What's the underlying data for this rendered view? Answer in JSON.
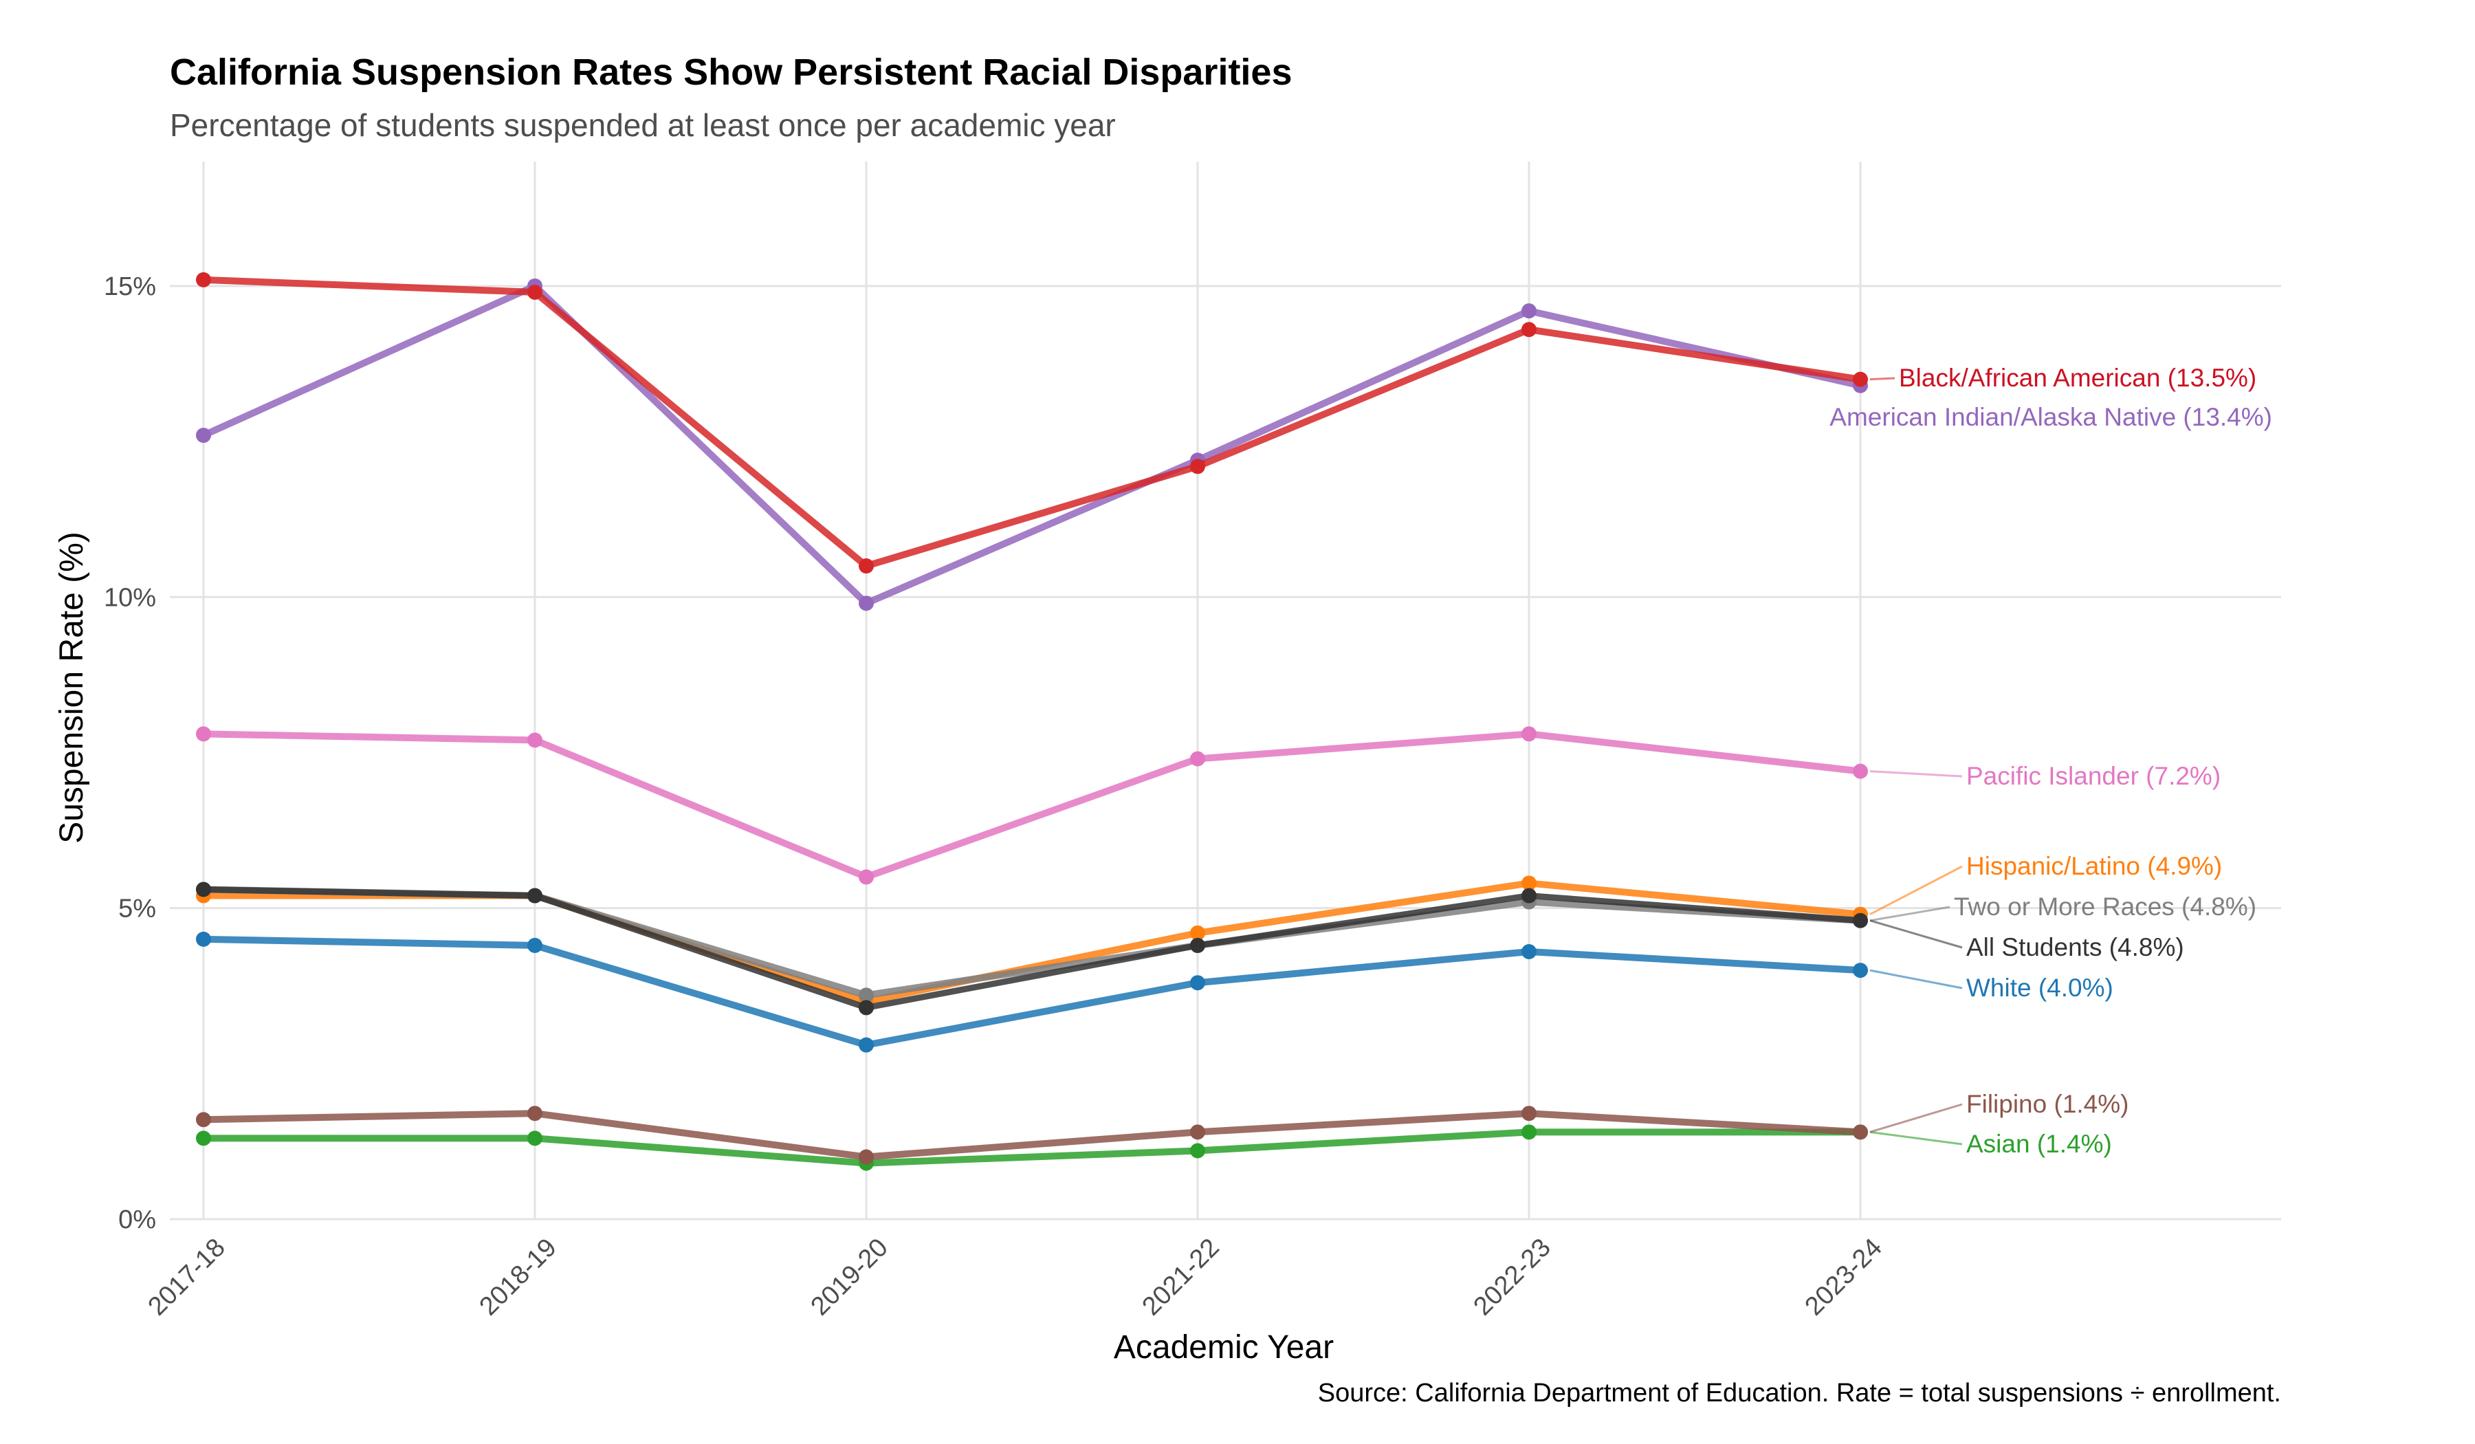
{
  "chart_data": {
    "type": "line",
    "title": "California Suspension Rates Show Persistent Racial Disparities",
    "subtitle": "Percentage of students suspended at least once per academic year",
    "xlabel": "Academic Year",
    "ylabel": "Suspension Rate (%)",
    "caption": "Source: California Department of Education. Rate = total suspensions ÷ enrollment.",
    "categories": [
      "2017-18",
      "2018-19",
      "2019-20",
      "2021-22",
      "2022-23",
      "2023-24"
    ],
    "ylim": [
      0,
      17
    ],
    "yticks": [
      0,
      5,
      10,
      15
    ],
    "ytick_labels": [
      "0%",
      "5%",
      "10%",
      "15%"
    ],
    "grid": true,
    "legend": "direct labels at right end of lines",
    "series": [
      {
        "key": "asian",
        "label": "Asian (1.4%)",
        "color": "#2ca02c",
        "values": [
          1.3,
          1.3,
          0.9,
          1.1,
          1.4,
          1.4
        ]
      },
      {
        "key": "filipino",
        "label": "Filipino (1.4%)",
        "color": "#8c564b",
        "values": [
          1.6,
          1.7,
          1.0,
          1.4,
          1.7,
          1.4
        ]
      },
      {
        "key": "white",
        "label": "White (4.0%)",
        "color": "#1f77b4",
        "values": [
          4.5,
          4.4,
          2.8,
          3.8,
          4.3,
          4.0
        ]
      },
      {
        "key": "hispanic",
        "label": "Hispanic/Latino (4.9%)",
        "color": "#ff7f0e",
        "values": [
          5.2,
          5.2,
          3.5,
          4.6,
          5.4,
          4.9
        ]
      },
      {
        "key": "two_or_more",
        "label": "Two or More Races (4.8%)",
        "color": "#7f7f7f",
        "values": [
          5.3,
          5.2,
          3.6,
          4.4,
          5.1,
          4.8
        ]
      },
      {
        "key": "all",
        "label": "All Students (4.8%)",
        "color": "#333333",
        "values": [
          5.3,
          5.2,
          3.4,
          4.4,
          5.2,
          4.8
        ]
      },
      {
        "key": "pacific",
        "label": "Pacific Islander (7.2%)",
        "color": "#e377c2",
        "values": [
          7.8,
          7.7,
          5.5,
          7.4,
          7.8,
          7.2
        ]
      },
      {
        "key": "aian",
        "label": "American Indian/Alaska Native (13.4%)",
        "color": "#9467bd",
        "values": [
          12.6,
          15.0,
          9.9,
          12.2,
          14.6,
          13.4
        ]
      },
      {
        "key": "black",
        "label": "Black/African American (13.5%)",
        "color": "#d62728",
        "label_color": "#cc1122",
        "values": [
          15.1,
          14.9,
          10.5,
          12.1,
          14.3,
          13.5
        ]
      }
    ]
  }
}
